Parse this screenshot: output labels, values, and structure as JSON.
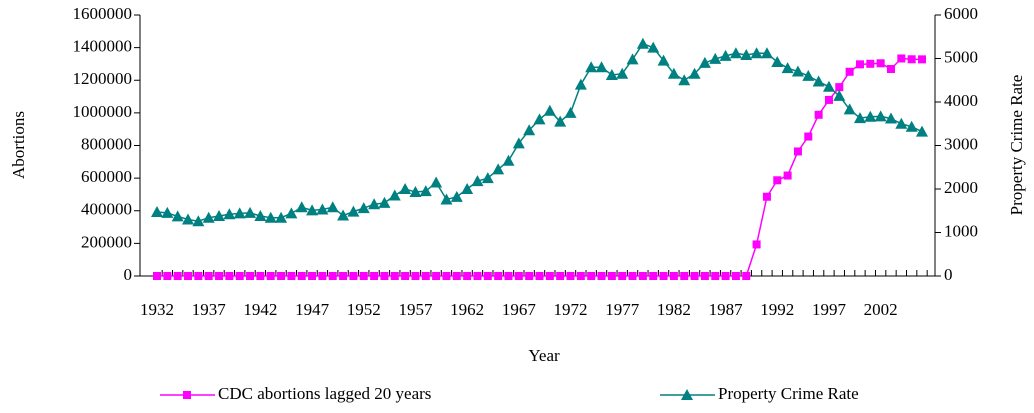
{
  "chart_data": {
    "type": "line",
    "x_label": "Year",
    "y_label": "Abortions",
    "y2_label": "Property Crime Rate",
    "categories": [
      "1932",
      null,
      null,
      null,
      null,
      "1937",
      null,
      null,
      null,
      null,
      "1942",
      null,
      null,
      null,
      null,
      "1947",
      null,
      null,
      null,
      null,
      "1952",
      null,
      null,
      null,
      null,
      "1957",
      null,
      null,
      null,
      null,
      "1962",
      null,
      null,
      null,
      null,
      "1967",
      null,
      null,
      null,
      null,
      "1972",
      null,
      null,
      null,
      null,
      "1977",
      null,
      null,
      null,
      null,
      "1982",
      null,
      null,
      null,
      null,
      "1987",
      null,
      null,
      null,
      null,
      "1992",
      null,
      null,
      null,
      null,
      "1997",
      null,
      null,
      null,
      null,
      "2002",
      null,
      null,
      null,
      null
    ],
    "series": [
      {
        "name": "CDC abortions lagged 20 years",
        "color": "#ff00ff",
        "marker": "square",
        "axis": "y",
        "values": [
          0,
          0,
          0,
          0,
          0,
          0,
          0,
          0,
          0,
          0,
          0,
          0,
          0,
          0,
          0,
          0,
          0,
          0,
          0,
          0,
          0,
          0,
          0,
          0,
          0,
          0,
          0,
          0,
          0,
          0,
          0,
          0,
          0,
          0,
          0,
          0,
          0,
          0,
          0,
          0,
          0,
          0,
          0,
          0,
          0,
          0,
          0,
          0,
          0,
          0,
          0,
          0,
          0,
          0,
          0,
          0,
          0,
          0,
          193491,
          485816,
          586760,
          615831,
          763476,
          854853,
          988267,
          1079430,
          1157776,
          1251921,
          1297606,
          1300760,
          1303980,
          1268987,
          1333521,
          1328570,
          1328112
        ]
      },
      {
        "name": "Property Crime Rate",
        "color": "#008080",
        "marker": "triangle",
        "axis": "y2",
        "values": [
          1470,
          1450,
          1370,
          1300,
          1260,
          1340,
          1380,
          1420,
          1440,
          1450,
          1380,
          1340,
          1340,
          1440,
          1580,
          1510,
          1530,
          1580,
          1390,
          1480,
          1560,
          1650,
          1680,
          1850,
          2000,
          1930,
          1950,
          2150,
          1760,
          1820,
          2000,
          2180,
          2250,
          2450,
          2650,
          3050,
          3350,
          3600,
          3800,
          3550,
          3750,
          4400,
          4800,
          4800,
          4620,
          4650,
          4980,
          5340,
          5250,
          4950,
          4650,
          4500,
          4650,
          4900,
          4990,
          5060,
          5120,
          5080,
          5120,
          5120,
          4920,
          4780,
          4700,
          4600,
          4470,
          4350,
          4140,
          3830,
          3630,
          3660,
          3670,
          3620,
          3500,
          3430,
          3320
        ]
      }
    ],
    "ylim": [
      0,
      1600000
    ],
    "yticks": [
      0,
      200000,
      400000,
      600000,
      800000,
      1000000,
      1200000,
      1400000,
      1600000
    ],
    "y2lim": [
      0,
      6000
    ],
    "y2ticks": [
      0,
      1000,
      2000,
      3000,
      4000,
      5000,
      6000
    ],
    "legend": "bottom"
  }
}
